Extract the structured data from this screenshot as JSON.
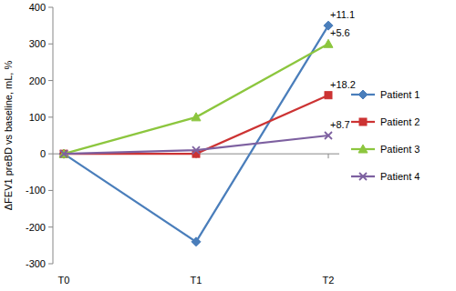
{
  "chart_data": {
    "type": "line",
    "y_label": "ΔFEV1 preBD vs baseline, mL, %",
    "categories": [
      "T0",
      "T1",
      "T2"
    ],
    "series": [
      {
        "name": "Patient 1",
        "color": "#4a7ebb",
        "marker": "diamond",
        "values": [
          0,
          -240,
          350
        ],
        "annotation": "+11.1"
      },
      {
        "name": "Patient 2",
        "color": "#cc3333",
        "marker": "square",
        "values": [
          0,
          0,
          160
        ],
        "annotation": "+18.2"
      },
      {
        "name": "Patient 3",
        "color": "#8cc63e",
        "marker": "triangle",
        "values": [
          0,
          100,
          300
        ],
        "annotation": "+5.6"
      },
      {
        "name": "Patient 4",
        "color": "#7d60a0",
        "marker": "x",
        "values": [
          0,
          10,
          50
        ],
        "annotation": "+8.7"
      }
    ],
    "ylim": [
      -300,
      400
    ],
    "yticks": [
      -300,
      -200,
      -100,
      0,
      100,
      200,
      300,
      400
    ],
    "grid": false,
    "legend": "right"
  }
}
